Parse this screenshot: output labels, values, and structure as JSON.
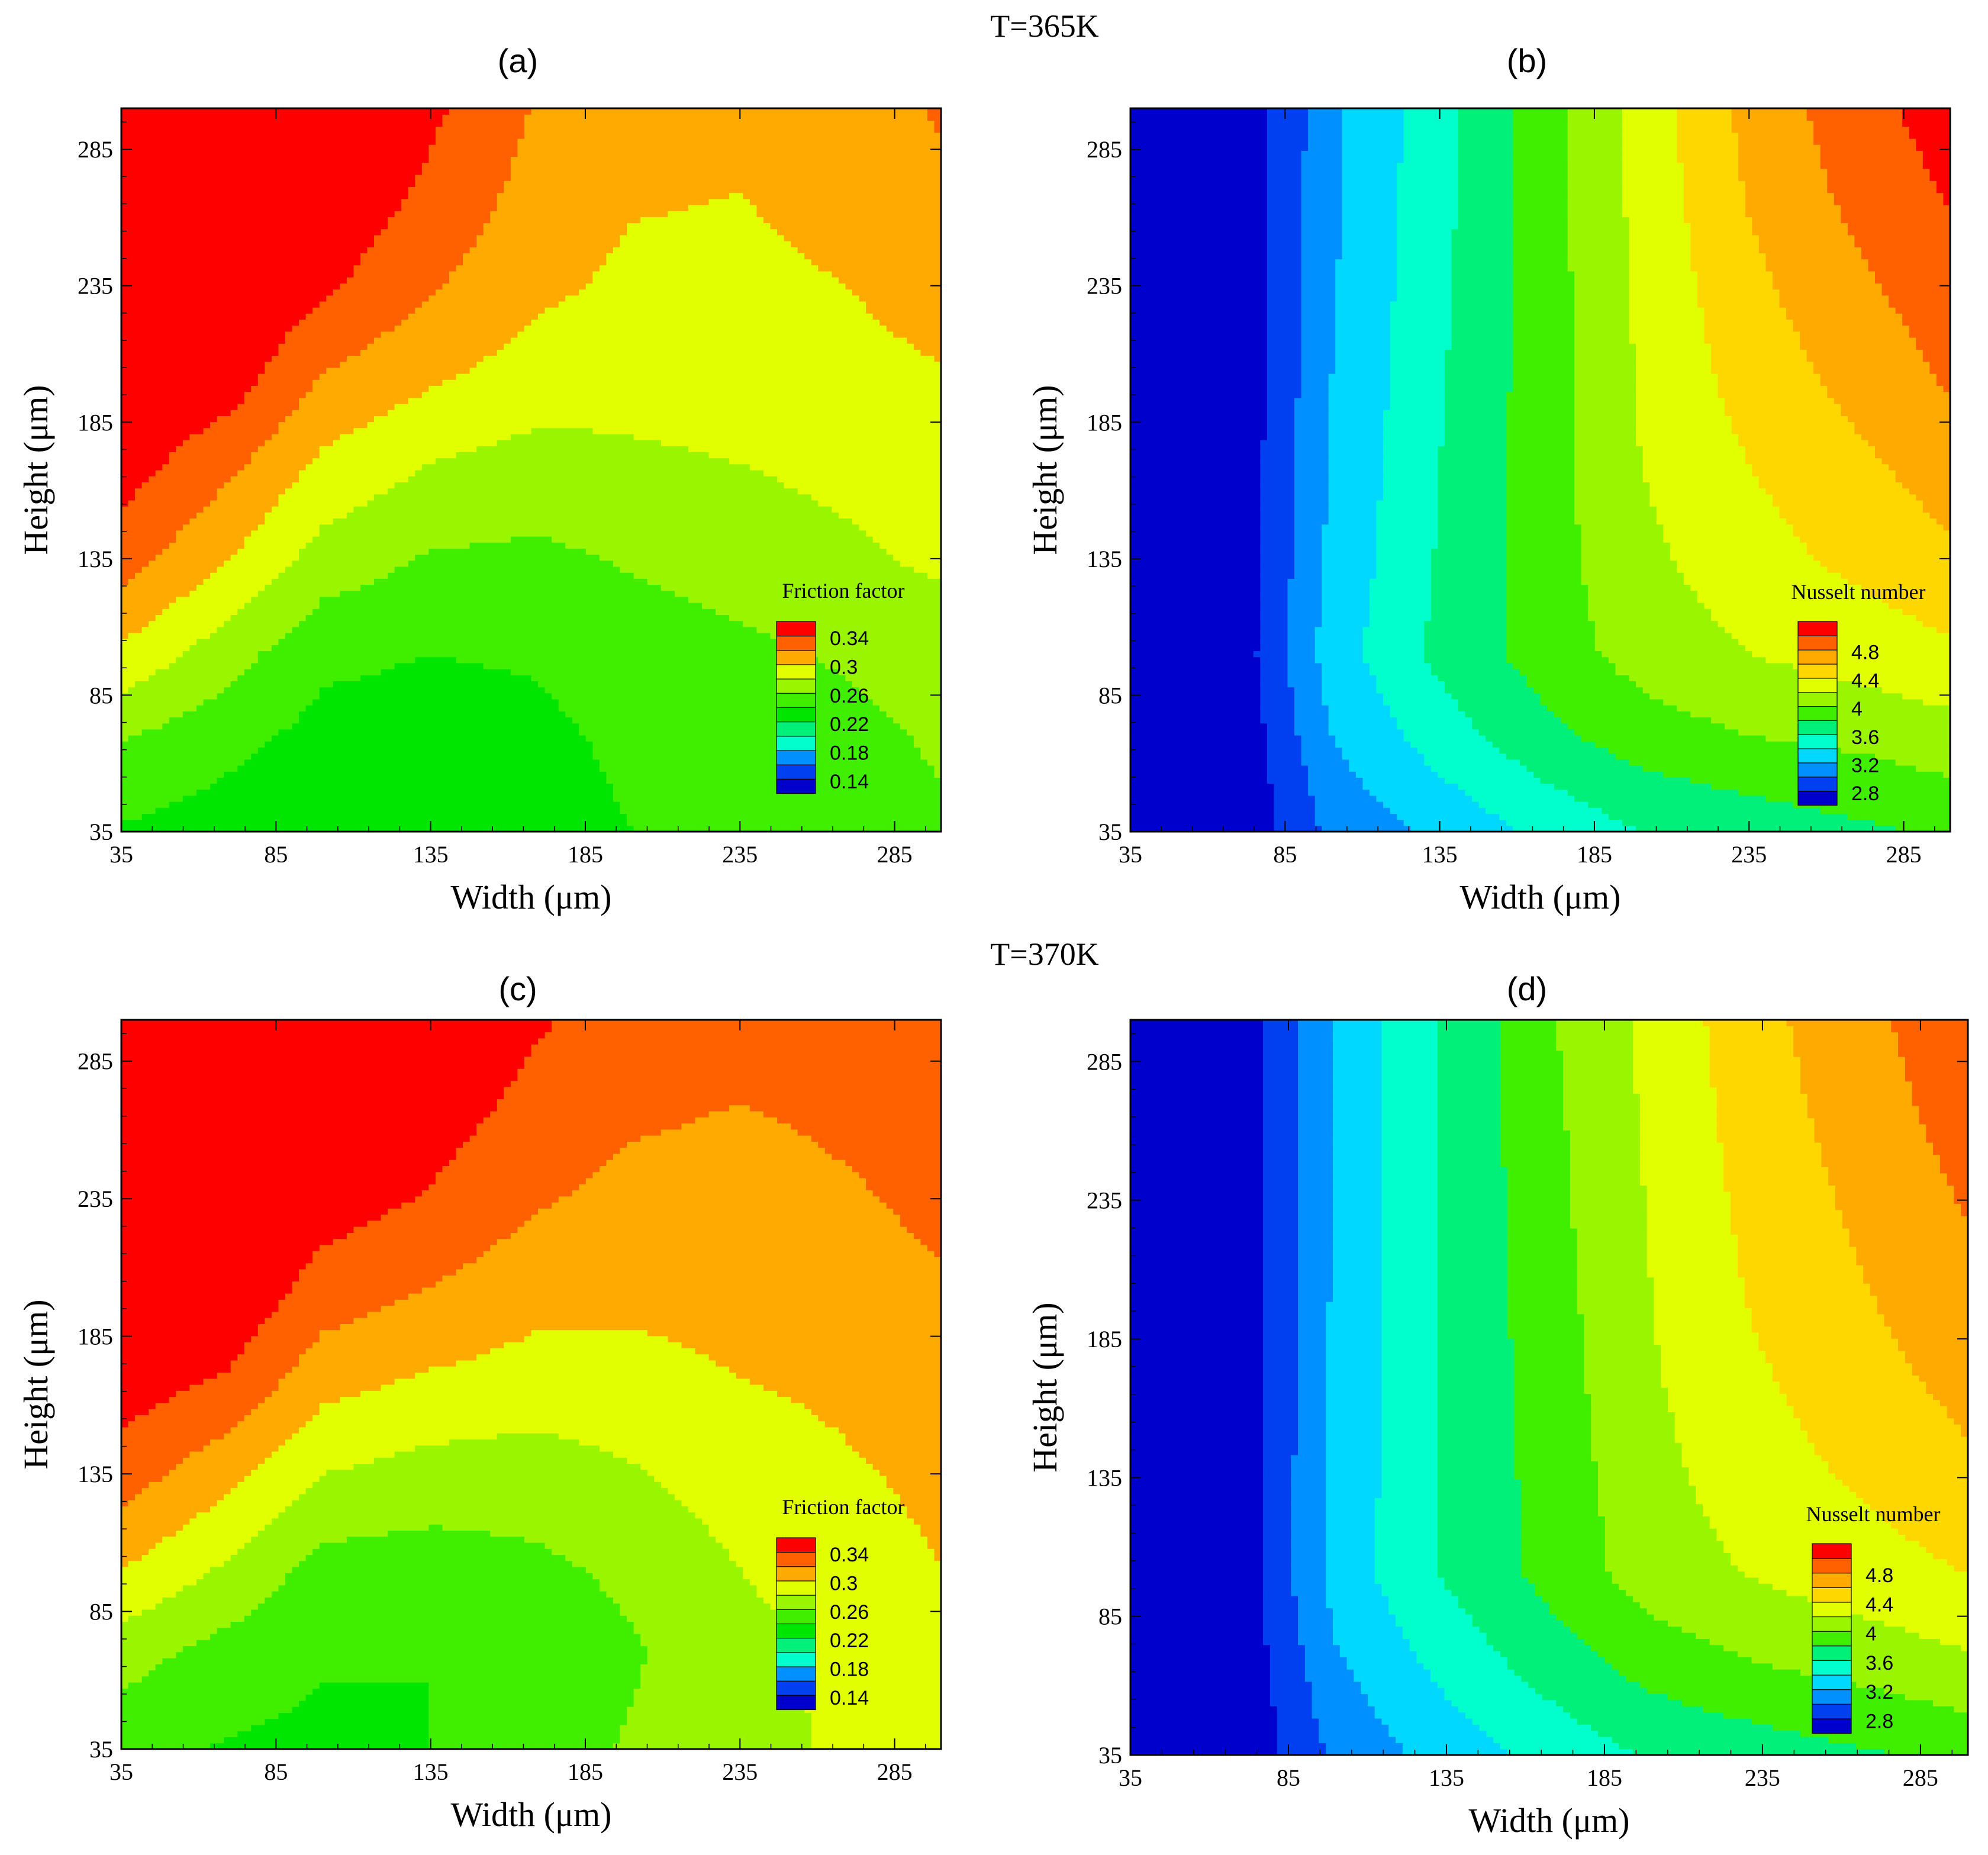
{
  "figure": {
    "row_titles": [
      "T=365K",
      "T=370K"
    ]
  },
  "colors": {
    "bands": [
      "#0000cc",
      "#0040f0",
      "#0090ff",
      "#00d8ff",
      "#00ffcc",
      "#00f07a",
      "#00e600",
      "#40ee00",
      "#99f500",
      "#e2ff00",
      "#ffd700",
      "#ffaa00",
      "#ff6000",
      "#ff0000"
    ]
  },
  "chart_data": [
    {
      "type": "heatmap",
      "panel": "(a)",
      "temperature": "T=365K",
      "xlabel": "Width (μm)",
      "ylabel": "Height (μm)",
      "xlim": [
        35,
        300
      ],
      "ylim": [
        35,
        300
      ],
      "xticks": [
        35,
        85,
        135,
        185,
        235,
        285
      ],
      "yticks": [
        35,
        85,
        135,
        185,
        235,
        285
      ],
      "x": [
        35,
        70,
        100,
        135,
        170,
        200,
        235,
        270,
        300
      ],
      "y": [
        35,
        70,
        100,
        135,
        170,
        200,
        235,
        270,
        300
      ],
      "z": [
        [
          0.238,
          0.23,
          0.226,
          0.226,
          0.232,
          0.24,
          0.246,
          0.252,
          0.258
        ],
        [
          0.262,
          0.246,
          0.234,
          0.232,
          0.236,
          0.244,
          0.25,
          0.256,
          0.262
        ],
        [
          0.296,
          0.268,
          0.244,
          0.24,
          0.242,
          0.25,
          0.256,
          0.262,
          0.268
        ],
        [
          0.33,
          0.3,
          0.272,
          0.258,
          0.256,
          0.262,
          0.268,
          0.276,
          0.284
        ],
        [
          0.35,
          0.325,
          0.296,
          0.28,
          0.272,
          0.276,
          0.28,
          0.286,
          0.292
        ],
        [
          0.36,
          0.35,
          0.318,
          0.302,
          0.29,
          0.288,
          0.29,
          0.294,
          0.298
        ],
        [
          0.368,
          0.362,
          0.344,
          0.322,
          0.304,
          0.296,
          0.296,
          0.3,
          0.308
        ],
        [
          0.372,
          0.368,
          0.358,
          0.336,
          0.312,
          0.302,
          0.3,
          0.306,
          0.316
        ],
        [
          0.376,
          0.372,
          0.364,
          0.344,
          0.318,
          0.306,
          0.304,
          0.312,
          0.322
        ]
      ],
      "legend_title": "Friction factor",
      "legend_levels": [
        0.14,
        0.16,
        0.18,
        0.2,
        0.22,
        0.24,
        0.26,
        0.28,
        0.3,
        0.32,
        0.34
      ],
      "legend_labels": [
        "0.34",
        "0.3",
        "0.26",
        "0.22",
        "0.18",
        "0.14"
      ],
      "legend_position": "bottom-right"
    },
    {
      "type": "heatmap",
      "panel": "(b)",
      "temperature": "T=365K",
      "xlabel": "Width (μm)",
      "ylabel": "Height (μm)",
      "xlim": [
        35,
        300
      ],
      "ylim": [
        35,
        300
      ],
      "xticks": [
        35,
        85,
        135,
        185,
        235,
        285
      ],
      "yticks": [
        35,
        85,
        135,
        185,
        235,
        285
      ],
      "x": [
        35,
        70,
        100,
        135,
        170,
        200,
        235,
        270,
        300
      ],
      "y": [
        35,
        70,
        100,
        135,
        170,
        200,
        235,
        270,
        300
      ],
      "z": [
        [
          2.5,
          2.62,
          3.05,
          3.25,
          3.45,
          3.6,
          3.68,
          3.76,
          3.84
        ],
        [
          2.5,
          2.64,
          3.2,
          3.5,
          3.75,
          3.9,
          4.0,
          4.05,
          4.12
        ],
        [
          2.5,
          2.68,
          3.3,
          3.65,
          3.9,
          4.08,
          4.2,
          4.28,
          4.36
        ],
        [
          2.5,
          2.66,
          3.25,
          3.62,
          3.92,
          4.15,
          4.32,
          4.45,
          4.56
        ],
        [
          2.5,
          2.65,
          3.22,
          3.6,
          3.92,
          4.2,
          4.4,
          4.56,
          4.7
        ],
        [
          2.5,
          2.64,
          3.2,
          3.58,
          3.92,
          4.22,
          4.48,
          4.66,
          4.82
        ],
        [
          2.5,
          2.63,
          3.18,
          3.56,
          3.92,
          4.24,
          4.55,
          4.76,
          4.92
        ],
        [
          2.5,
          2.62,
          3.16,
          3.54,
          3.92,
          4.26,
          4.62,
          4.86,
          5.02
        ],
        [
          2.5,
          2.62,
          3.15,
          3.54,
          3.92,
          4.28,
          4.66,
          4.92,
          5.1
        ]
      ],
      "legend_title": "Nusselt number",
      "legend_levels": [
        2.8,
        3.0,
        3.2,
        3.4,
        3.6,
        3.8,
        4.0,
        4.2,
        4.4,
        4.6,
        4.8,
        5.0
      ],
      "legend_labels": [
        "4.8",
        "4.4",
        "4",
        "3.6",
        "3.2",
        "2.8"
      ],
      "legend_position": "bottom-right"
    },
    {
      "type": "heatmap",
      "panel": "(c)",
      "temperature": "T=370K",
      "xlabel": "Width (μm)",
      "ylabel": "Height (μm)",
      "xlim": [
        35,
        300
      ],
      "ylim": [
        35,
        300
      ],
      "xticks": [
        35,
        85,
        135,
        185,
        235,
        285
      ],
      "yticks": [
        35,
        85,
        135,
        185,
        235,
        285
      ],
      "x": [
        35,
        70,
        100,
        135,
        170,
        200,
        235,
        270,
        300
      ],
      "y": [
        35,
        70,
        100,
        135,
        170,
        200,
        235,
        270,
        300
      ],
      "z": [
        [
          0.248,
          0.238,
          0.235,
          0.24,
          0.252,
          0.262,
          0.272,
          0.284,
          0.292
        ],
        [
          0.268,
          0.252,
          0.242,
          0.24,
          0.248,
          0.258,
          0.272,
          0.286,
          0.296
        ],
        [
          0.3,
          0.276,
          0.252,
          0.25,
          0.256,
          0.264,
          0.28,
          0.292,
          0.3
        ],
        [
          0.33,
          0.306,
          0.28,
          0.272,
          0.27,
          0.278,
          0.29,
          0.298,
          0.304
        ],
        [
          0.352,
          0.338,
          0.308,
          0.298,
          0.292,
          0.294,
          0.3,
          0.304,
          0.31
        ],
        [
          0.362,
          0.356,
          0.33,
          0.318,
          0.306,
          0.304,
          0.306,
          0.312,
          0.318
        ],
        [
          0.368,
          0.364,
          0.35,
          0.338,
          0.322,
          0.314,
          0.312,
          0.318,
          0.324
        ],
        [
          0.372,
          0.37,
          0.362,
          0.35,
          0.334,
          0.324,
          0.32,
          0.324,
          0.328
        ],
        [
          0.376,
          0.374,
          0.368,
          0.358,
          0.342,
          0.332,
          0.326,
          0.328,
          0.332
        ]
      ],
      "legend_title": "Friction factor",
      "legend_levels": [
        0.14,
        0.16,
        0.18,
        0.2,
        0.22,
        0.24,
        0.26,
        0.28,
        0.3,
        0.32,
        0.34
      ],
      "legend_labels": [
        "0.34",
        "0.3",
        "0.26",
        "0.22",
        "0.18",
        "0.14"
      ],
      "legend_position": "bottom-right"
    },
    {
      "type": "heatmap",
      "panel": "(d)",
      "temperature": "T=370K",
      "xlabel": "Width (μm)",
      "ylabel": "Height (μm)",
      "xlim": [
        35,
        300
      ],
      "ylim": [
        35,
        300
      ],
      "xticks": [
        35,
        85,
        135,
        185,
        235,
        285
      ],
      "yticks": [
        35,
        85,
        135,
        185,
        235,
        285
      ],
      "x": [
        35,
        70,
        100,
        135,
        170,
        200,
        235,
        270,
        300
      ],
      "y": [
        35,
        70,
        100,
        135,
        170,
        200,
        235,
        270,
        300
      ],
      "z": [
        [
          2.5,
          2.62,
          3.05,
          3.28,
          3.48,
          3.62,
          3.7,
          3.78,
          3.86
        ],
        [
          2.5,
          2.65,
          3.18,
          3.48,
          3.72,
          3.9,
          4.02,
          4.1,
          4.18
        ],
        [
          2.5,
          2.68,
          3.28,
          3.62,
          3.88,
          4.1,
          4.22,
          4.32,
          4.4
        ],
        [
          2.5,
          2.67,
          3.26,
          3.62,
          3.9,
          4.14,
          4.32,
          4.44,
          4.56
        ],
        [
          2.5,
          2.66,
          3.25,
          3.62,
          3.92,
          4.18,
          4.38,
          4.54,
          4.66
        ],
        [
          2.5,
          2.65,
          3.24,
          3.62,
          3.94,
          4.2,
          4.44,
          4.6,
          4.74
        ],
        [
          2.5,
          2.64,
          3.24,
          3.62,
          3.96,
          4.22,
          4.48,
          4.66,
          4.82
        ],
        [
          2.5,
          2.64,
          3.24,
          3.62,
          3.98,
          4.24,
          4.52,
          4.72,
          4.9
        ],
        [
          2.5,
          2.64,
          3.24,
          3.62,
          4.0,
          4.26,
          4.55,
          4.76,
          4.96
        ]
      ],
      "legend_title": "Nusselt number",
      "legend_levels": [
        2.8,
        3.0,
        3.2,
        3.4,
        3.6,
        3.8,
        4.0,
        4.2,
        4.4,
        4.6,
        4.8,
        5.0
      ],
      "legend_labels": [
        "4.8",
        "4.4",
        "4",
        "3.6",
        "3.2",
        "2.8"
      ],
      "legend_position": "bottom-right"
    }
  ]
}
